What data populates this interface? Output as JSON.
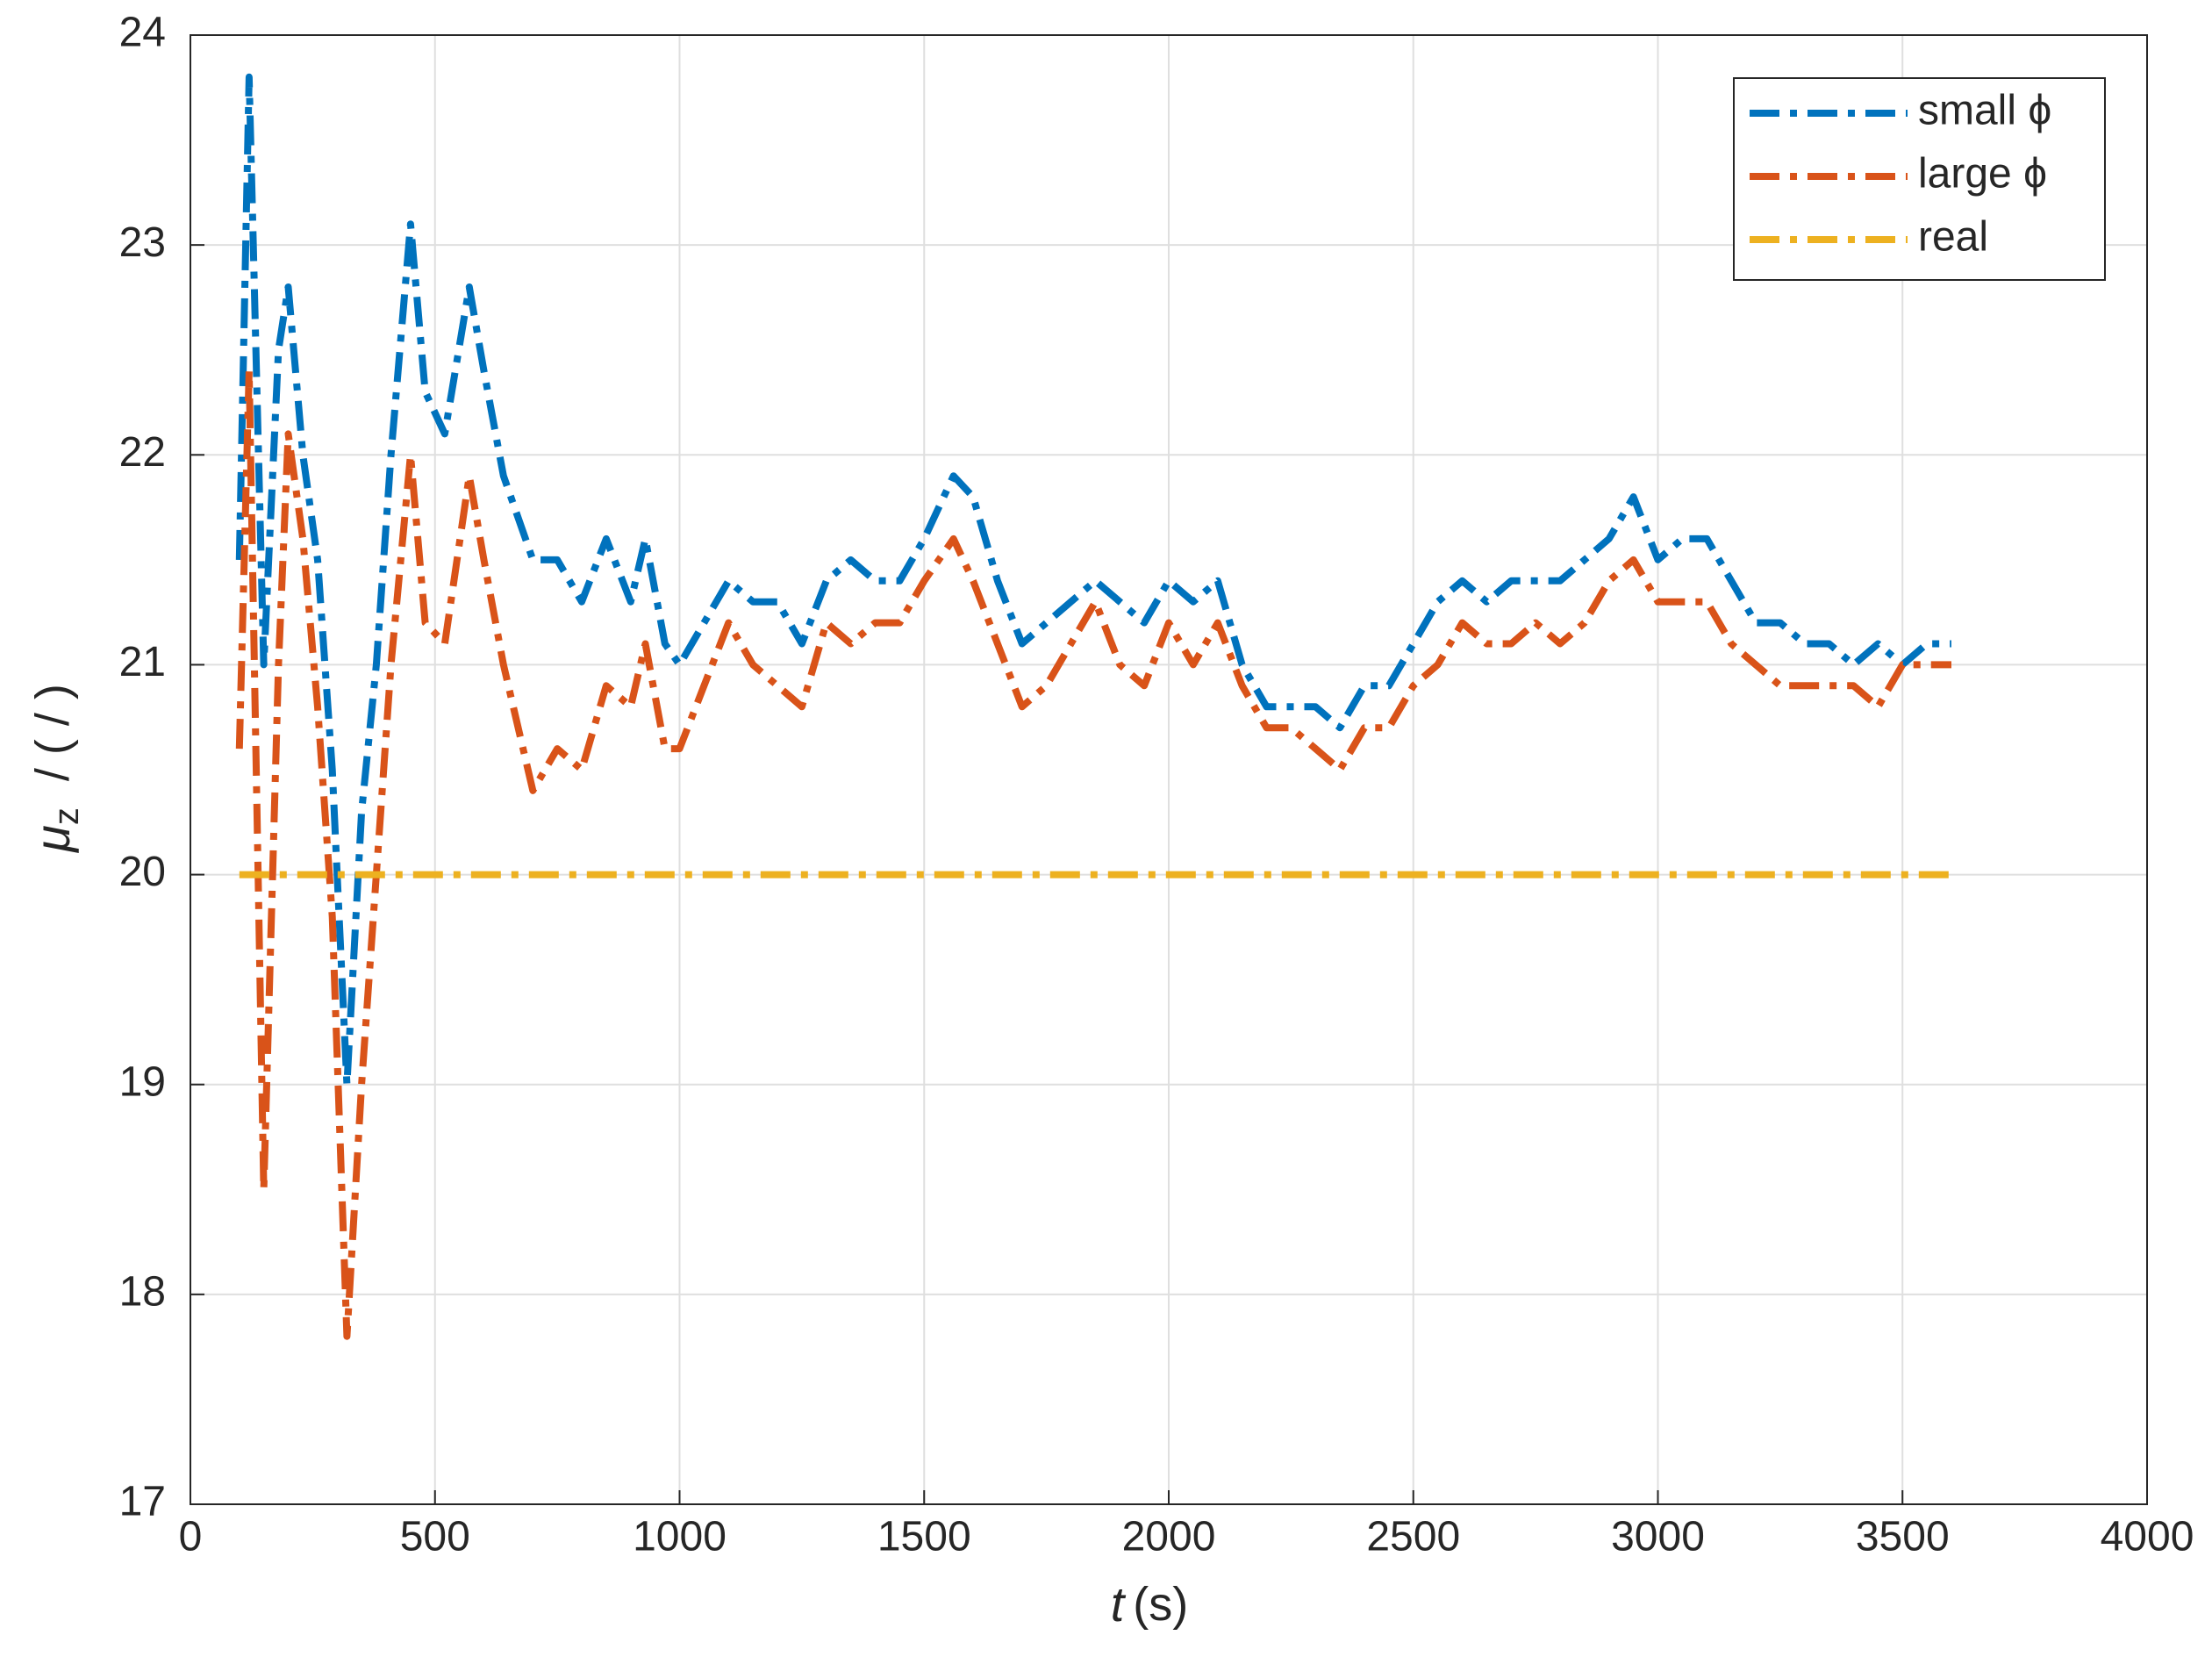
{
  "chart_data": {
    "type": "line",
    "xlabel_var": "t",
    "xlabel_unit": "(s)",
    "ylabel_symbol": "μ",
    "ylabel_subscript": "z",
    "ylabel_rest": "/ ( / )",
    "x": [
      100,
      120,
      150,
      180,
      200,
      230,
      260,
      290,
      320,
      350,
      380,
      410,
      450,
      480,
      520,
      570,
      600,
      640,
      700,
      750,
      800,
      850,
      900,
      930,
      970,
      1000,
      1050,
      1100,
      1150,
      1200,
      1250,
      1300,
      1350,
      1400,
      1450,
      1500,
      1560,
      1600,
      1650,
      1700,
      1750,
      1800,
      1850,
      1900,
      1950,
      2000,
      2050,
      2100,
      2150,
      2200,
      2250,
      2300,
      2350,
      2400,
      2450,
      2500,
      2550,
      2600,
      2650,
      2700,
      2750,
      2800,
      2850,
      2900,
      2950,
      3000,
      3050,
      3100,
      3150,
      3200,
      3250,
      3300,
      3350,
      3400,
      3450,
      3500,
      3550,
      3600
    ],
    "series": [
      {
        "name": "small ϕ",
        "color": "#0072bd",
        "values": [
          21.5,
          23.8,
          21.0,
          22.5,
          22.8,
          22.0,
          21.5,
          20.5,
          19.0,
          20.3,
          21.0,
          22.0,
          23.1,
          22.3,
          22.1,
          22.8,
          22.4,
          21.9,
          21.5,
          21.5,
          21.3,
          21.6,
          21.3,
          21.6,
          21.1,
          21.0,
          21.2,
          21.4,
          21.3,
          21.3,
          21.1,
          21.4,
          21.5,
          21.4,
          21.4,
          21.6,
          21.9,
          21.8,
          21.4,
          21.1,
          21.2,
          21.3,
          21.4,
          21.3,
          21.2,
          21.4,
          21.3,
          21.4,
          21.0,
          20.8,
          20.8,
          20.8,
          20.7,
          20.9,
          20.9,
          21.1,
          21.3,
          21.4,
          21.3,
          21.4,
          21.4,
          21.4,
          21.5,
          21.6,
          21.8,
          21.5,
          21.6,
          21.6,
          21.4,
          21.2,
          21.2,
          21.1,
          21.1,
          21.0,
          21.1,
          21.0,
          21.1,
          21.1
        ]
      },
      {
        "name": "large ϕ",
        "color": "#d95319",
        "values": [
          20.6,
          22.4,
          18.5,
          21.0,
          22.1,
          21.6,
          20.8,
          19.8,
          17.8,
          19.0,
          20.0,
          21.0,
          22.0,
          21.2,
          21.1,
          21.9,
          21.5,
          21.0,
          20.4,
          20.6,
          20.5,
          20.9,
          20.8,
          21.1,
          20.6,
          20.6,
          20.9,
          21.2,
          21.0,
          20.9,
          20.8,
          21.2,
          21.1,
          21.2,
          21.2,
          21.4,
          21.6,
          21.4,
          21.1,
          20.8,
          20.9,
          21.1,
          21.3,
          21.0,
          20.9,
          21.2,
          21.0,
          21.2,
          20.9,
          20.7,
          20.7,
          20.6,
          20.5,
          20.7,
          20.7,
          20.9,
          21.0,
          21.2,
          21.1,
          21.1,
          21.2,
          21.1,
          21.2,
          21.4,
          21.5,
          21.3,
          21.3,
          21.3,
          21.1,
          21.0,
          20.9,
          20.9,
          20.9,
          20.9,
          20.8,
          21.0,
          21.0,
          21.0
        ]
      },
      {
        "name": "real",
        "color": "#edb120",
        "x": [
          100,
          3600
        ],
        "values": [
          20,
          20
        ]
      }
    ],
    "xlim": [
      0,
      4000
    ],
    "xticks": [
      0,
      500,
      1000,
      1500,
      2000,
      2500,
      3000,
      3500,
      4000
    ],
    "ylim": [
      17,
      24
    ],
    "yticks": [
      17,
      18,
      19,
      20,
      21,
      22,
      23,
      24
    ],
    "grid": true,
    "legend": "upper right"
  }
}
